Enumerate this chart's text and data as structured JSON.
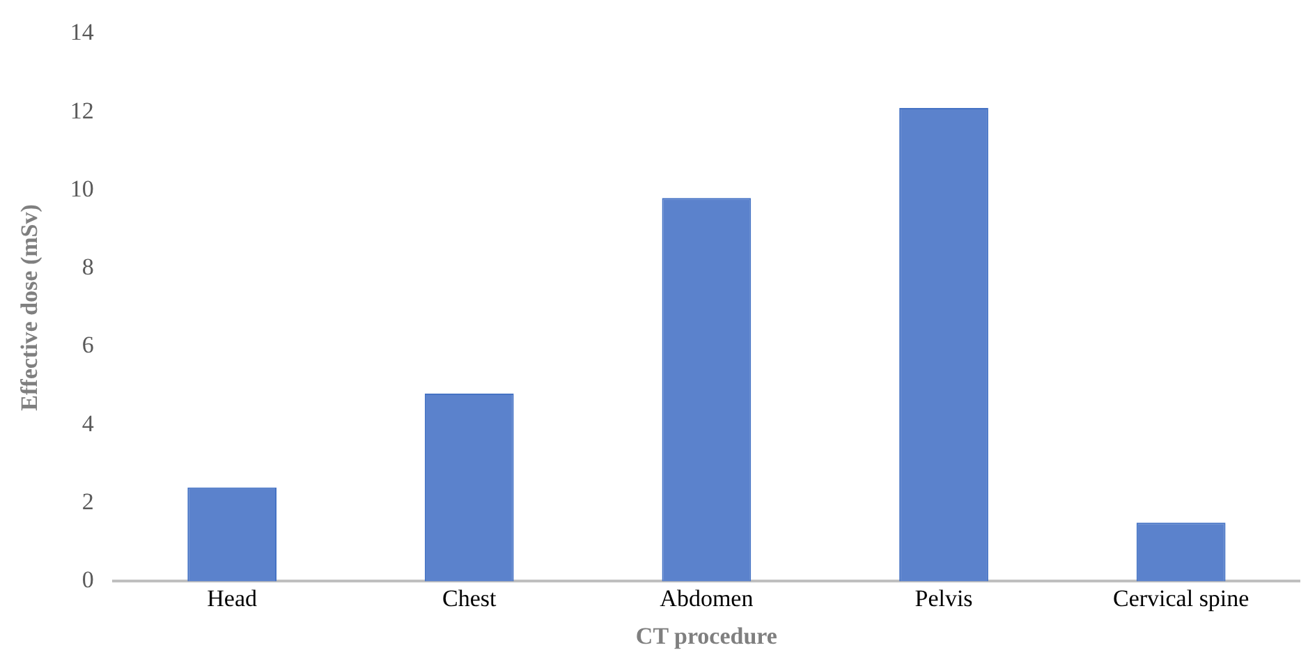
{
  "chart_data": {
    "type": "bar",
    "xlabel": "CT procedure",
    "ylabel": "Effective dose (mSv)",
    "categories": [
      "Head",
      "Chest",
      "Abdomen",
      "Pelvis",
      "Cervical spine"
    ],
    "values": [
      2.4,
      4.8,
      9.8,
      12.1,
      1.5
    ],
    "color": "#5b82cc",
    "ylim": [
      0,
      14
    ],
    "yticks": [
      0,
      2,
      4,
      6,
      8,
      10,
      12,
      14
    ],
    "grid": false,
    "legend": false
  }
}
